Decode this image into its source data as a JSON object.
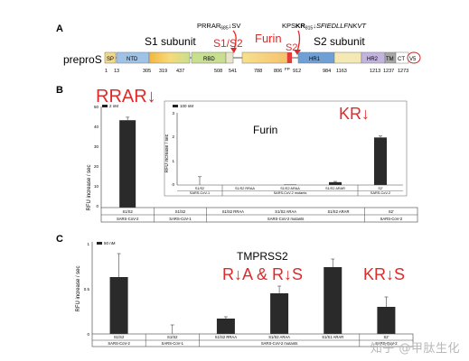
{
  "panelA": {
    "panel_label": "A",
    "protein_label": "preproS",
    "s1_label": "S1 subunit",
    "s2_label": "S2 subunit",
    "s1s2_label": "S1/S2",
    "furin_label": "Furin",
    "s2prime_label": "S2'",
    "top_seq_left": "PRRAR",
    "top_seq_left_sub": "685",
    "top_seq_left_tail": "↓SV",
    "top_seq_right_prefix": "KPS",
    "top_seq_right_bold": "KR",
    "top_seq_right_sub": "815",
    "top_seq_right_tail": "↓SFIEDLLFNKVT",
    "domains": [
      {
        "name": "SP",
        "color": "#f1d98a"
      },
      {
        "name": "NTD",
        "color": "#9ec3e6"
      },
      {
        "name": "RBD",
        "color": "#c7df8e"
      },
      {
        "name": "FP",
        "color": "#e23b3b"
      },
      {
        "name": "HR1",
        "color": "#6ea0d6"
      },
      {
        "name": "HR2",
        "color": "#c3b3df"
      },
      {
        "name": "TM",
        "color": "#a6a6a6"
      },
      {
        "name": "CT",
        "color": "#ffffff"
      },
      {
        "name": "V5",
        "color": "#ffffff"
      }
    ],
    "positions": [
      "1",
      "13",
      "305",
      "319",
      "437",
      "508",
      "541",
      "788",
      "806",
      "912",
      "984",
      "1163",
      "1213",
      "1237",
      "1273"
    ]
  },
  "panelB": {
    "panel_label": "B",
    "annotation": "RRAR↓",
    "furin_title": "Furin",
    "kr_annotation": "KR↓",
    "ylabel": "RFU increase / sec",
    "left_legend": "2 nM",
    "inset_legend": "100 nM",
    "left_ticks": [
      "50",
      "40",
      "30",
      "20",
      "10",
      "0"
    ],
    "inset_ticks": [
      "3",
      "2",
      "1",
      "0"
    ]
  },
  "panelC": {
    "panel_label": "C",
    "title": "TMPRSS2",
    "ylabel": "RFU increase / sec",
    "legend": "50 nM",
    "ann_mid": "R↓A & R↓S",
    "ann_right": "KR↓S",
    "ticks": [
      "1",
      "0.5",
      "0"
    ]
  },
  "watermark": "知乎 @甲肽生化",
  "chart_data": [
    {
      "type": "bar",
      "panel": "B (main)",
      "categories": [
        "S1/S2",
        "S1/S2",
        "S1/S2 RRAA",
        "S1/S2 ARAA",
        "S1/S2 ARAR",
        "S2'"
      ],
      "groups": [
        "SARS-CoV-2",
        "SARS-CoV-1",
        "SARS-CoV-2 mutants",
        "SARS-CoV-2 mutants",
        "SARS-CoV-2 mutants",
        "SARS-CoV-2"
      ],
      "values": [
        44,
        0,
        0,
        0,
        0,
        0
      ],
      "errors": [
        1.5,
        0,
        0,
        0,
        0,
        0
      ],
      "ylabel": "RFU increase / sec",
      "ylim": [
        0,
        50
      ]
    },
    {
      "type": "bar",
      "panel": "B (inset)",
      "title": "Furin",
      "categories": [
        "S1/S2",
        "S1/S2 RRAA",
        "S1/S2 ARAA",
        "S1/S2 ARAR",
        "S2'"
      ],
      "groups": [
        "SARS-CoV-1",
        "SARS-CoV-2 mutants",
        "SARS-CoV-2 mutants",
        "SARS-CoV-2 mutants",
        "SARS-CoV-2"
      ],
      "values": [
        0,
        0,
        0.02,
        0.12,
        2.0
      ],
      "errors": [
        0.35,
        0,
        0,
        0.03,
        0.06
      ],
      "ylim": [
        0,
        3
      ]
    },
    {
      "type": "bar",
      "panel": "C",
      "title": "TMPRSS2",
      "categories": [
        "S1/S2",
        "S1/S2",
        "S1/S2 RRAA",
        "S1/S2 ARAA",
        "S1/S1 ARAR",
        "S2'"
      ],
      "groups": [
        "SARS-CoV-2",
        "SARS-CoV-1",
        "SARS-CoV-2 mutants",
        "SARS-CoV-2 mutants",
        "SARS-CoV-2 mutants",
        "SARS-CoV-2"
      ],
      "values": [
        0.63,
        0,
        0.17,
        0.45,
        0.74,
        0.3
      ],
      "errors": [
        0.26,
        0.1,
        0.02,
        0.08,
        0.09,
        0.11
      ],
      "ylabel": "RFU increase / sec",
      "ylim": [
        0,
        1
      ]
    }
  ]
}
